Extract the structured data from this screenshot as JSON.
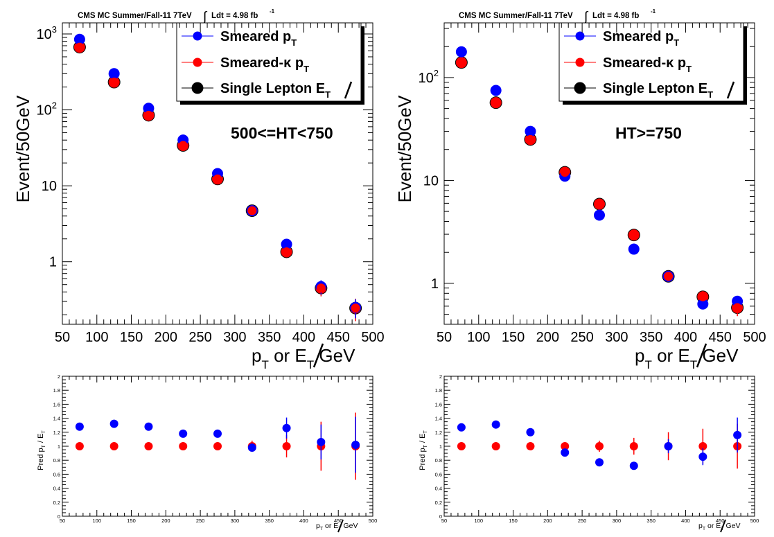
{
  "figure_header": {
    "title": "CMS MC Summer/Fall-11 7TeV",
    "lumi_label": "Ldt = 4.98 fb",
    "lumi_exponent": "-1",
    "integral_symbol": "∫"
  },
  "colors": {
    "smeared_pt": "#0000ff",
    "smeared_kappa_pt": "#ff0000",
    "single_lepton_met": "#000000"
  },
  "legend": {
    "entries": [
      {
        "main": "Smeared p",
        "sub": "T"
      },
      {
        "main": "Smeared-κ p",
        "sub": "T"
      },
      {
        "main": "Single Lepton E",
        "sub": "T"
      }
    ]
  },
  "axis_text": {
    "upper_ylabel": "Event/50GeV",
    "upper_xlabel_main": "p",
    "upper_xlabel_sub": "T",
    "upper_xlabel_mid": " or E",
    "upper_xlabel_sub2": "T",
    "upper_xlabel_unit": " GeV",
    "ratio_ylabel_main": "Pred p",
    "ratio_ylabel_sub": "T",
    "ratio_ylabel_mid": " / E",
    "ratio_xlabel": "p",
    "ratio_xlabel_sub": "T",
    "ratio_xlabel_mid": " or E",
    "ratio_xlabel_sub2": "T",
    "ratio_xlabel_unit": " GeV"
  },
  "chart_data": [
    {
      "type": "scatter",
      "panel": "upper-left",
      "annotation": "500<=HT<750",
      "ylabel": "Event/50GeV",
      "yscale": "log",
      "xlim": [
        50,
        500
      ],
      "ylim": [
        0.15,
        1400
      ],
      "xticks": [
        50,
        100,
        150,
        200,
        250,
        300,
        350,
        400,
        450,
        500
      ],
      "yticks": [
        {
          "v": 1,
          "label": "1"
        },
        {
          "v": 10,
          "label": "10"
        },
        {
          "v": 100,
          "label": "10",
          "exp": "2"
        },
        {
          "v": 1000,
          "label": "10",
          "exp": "3"
        }
      ],
      "x": [
        75,
        125,
        175,
        225,
        275,
        325,
        375,
        425,
        475
      ],
      "series": [
        {
          "name": "Smeared pT",
          "values": [
            850,
            300,
            105,
            40,
            14.5,
            4.7,
            1.7,
            0.47,
            0.25
          ],
          "err": [
            0,
            0,
            0,
            0,
            0,
            0,
            0,
            0.1,
            0.07
          ]
        },
        {
          "name": "Smeared-κ pT",
          "values": [
            670,
            232,
            85,
            34,
            12.3,
            4.7,
            1.35,
            0.45,
            0.245
          ],
          "err": [
            0,
            0,
            0,
            0,
            0,
            0,
            0,
            0.1,
            0.08
          ]
        },
        {
          "name": "Single Lepton MET",
          "values": [
            670,
            232,
            85,
            34,
            12.3,
            4.7,
            1.35,
            0.45,
            0.245
          ],
          "err": [
            0,
            0,
            0,
            0,
            0,
            0,
            0,
            0,
            0
          ]
        }
      ]
    },
    {
      "type": "scatter",
      "panel": "upper-right",
      "annotation": "HT>=750",
      "ylabel": "Event/50GeV",
      "yscale": "log",
      "xlim": [
        50,
        500
      ],
      "ylim": [
        0.4,
        340
      ],
      "xticks": [
        50,
        100,
        150,
        200,
        250,
        300,
        350,
        400,
        450,
        500
      ],
      "yticks": [
        {
          "v": 1,
          "label": "1"
        },
        {
          "v": 10,
          "label": "10"
        },
        {
          "v": 100,
          "label": "10",
          "exp": "2"
        }
      ],
      "x": [
        75,
        125,
        175,
        225,
        275,
        325,
        375,
        425,
        475
      ],
      "series": [
        {
          "name": "Smeared pT",
          "values": [
            178,
            75,
            30,
            11,
            4.6,
            2.15,
            1.17,
            0.63,
            0.67
          ],
          "err": [
            0,
            0,
            0,
            0,
            0,
            0,
            0,
            0.06,
            0.08
          ]
        },
        {
          "name": "Smeared-κ pT",
          "values": [
            140,
            57,
            25,
            12,
            5.9,
            2.95,
            1.17,
            0.74,
            0.58
          ],
          "err": [
            0,
            0,
            0,
            0,
            0,
            0,
            0,
            0.1,
            0.1
          ]
        },
        {
          "name": "Single Lepton MET",
          "values": [
            140,
            57,
            25,
            12,
            5.9,
            2.95,
            1.17,
            0.74,
            0.58
          ],
          "err": [
            0,
            0,
            0,
            0,
            0,
            0,
            0,
            0,
            0
          ]
        }
      ]
    },
    {
      "type": "scatter",
      "panel": "lower-left",
      "ylabel": "Pred pT / MET",
      "xlim": [
        50,
        500
      ],
      "ylim": [
        0,
        2
      ],
      "xticks": [
        50,
        100,
        150,
        200,
        250,
        300,
        350,
        400,
        450,
        500
      ],
      "yticks": [
        0,
        0.2,
        0.4,
        0.6,
        0.8,
        1,
        1.2,
        1.4,
        1.6,
        1.8,
        2
      ],
      "x": [
        75,
        125,
        175,
        225,
        275,
        325,
        375,
        425,
        475
      ],
      "series": [
        {
          "name": "Smeared pT",
          "values": [
            1.28,
            1.32,
            1.28,
            1.18,
            1.18,
            0.98,
            1.26,
            1.06,
            1.02
          ],
          "err": [
            0,
            0,
            0,
            0,
            0,
            0.05,
            0.15,
            0.25,
            0.4
          ]
        },
        {
          "name": "Smeared-κ pT",
          "values": [
            1.0,
            1.0,
            1.0,
            1.0,
            1.0,
            1.0,
            1.0,
            1.0,
            1.0
          ],
          "err": [
            0,
            0,
            0,
            0,
            0,
            0.08,
            0.16,
            0.35,
            0.48
          ]
        }
      ]
    },
    {
      "type": "scatter",
      "panel": "lower-right",
      "ylabel": "Pred pT / MET",
      "xlim": [
        50,
        500
      ],
      "ylim": [
        0,
        2
      ],
      "xticks": [
        50,
        100,
        150,
        200,
        250,
        300,
        350,
        400,
        450,
        500
      ],
      "yticks": [
        0,
        0.2,
        0.4,
        0.6,
        0.8,
        1,
        1.2,
        1.4,
        1.6,
        1.8,
        2
      ],
      "x": [
        75,
        125,
        175,
        225,
        275,
        325,
        375,
        425,
        475
      ],
      "series": [
        {
          "name": "Smeared pT",
          "values": [
            1.27,
            1.31,
            1.2,
            0.91,
            0.77,
            0.72,
            1.0,
            0.85,
            1.16
          ],
          "err": [
            0,
            0,
            0,
            0,
            0,
            0,
            0.1,
            0.12,
            0.25
          ]
        },
        {
          "name": "Smeared-κ pT",
          "values": [
            1.0,
            1.0,
            1.0,
            1.0,
            1.0,
            1.0,
            1.0,
            1.0,
            1.0
          ],
          "err": [
            0,
            0,
            0,
            0,
            0.08,
            0.12,
            0.2,
            0.25,
            0.32
          ]
        }
      ]
    }
  ]
}
